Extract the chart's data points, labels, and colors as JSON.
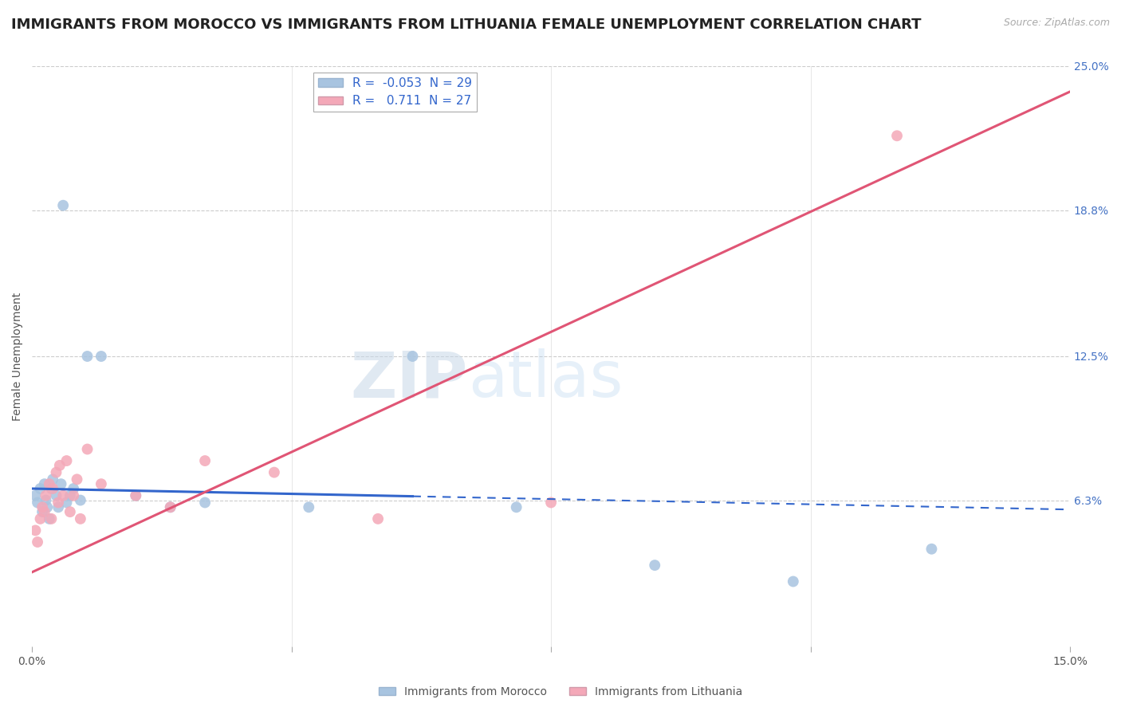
{
  "title": "IMMIGRANTS FROM MOROCCO VS IMMIGRANTS FROM LITHUANIA FEMALE UNEMPLOYMENT CORRELATION CHART",
  "source": "Source: ZipAtlas.com",
  "ylabel": "Female Unemployment",
  "watermark": "ZIPatlas",
  "xlim": [
    0.0,
    15.0
  ],
  "ylim": [
    0.0,
    25.0
  ],
  "xtick_positions": [
    0.0,
    3.75,
    7.5,
    11.25,
    15.0
  ],
  "xtick_labels": [
    "0.0%",
    "",
    "",
    "",
    "15.0%"
  ],
  "ytick_labels_right": [
    "6.3%",
    "12.5%",
    "18.8%",
    "25.0%"
  ],
  "ytick_vals_right": [
    6.3,
    12.5,
    18.8,
    25.0
  ],
  "grid_color": "#cccccc",
  "background_color": "#ffffff",
  "morocco_color": "#a8c4e0",
  "lithuania_color": "#f4a8b8",
  "morocco_R": -0.053,
  "morocco_N": 29,
  "lithuania_R": 0.711,
  "lithuania_N": 27,
  "morocco_label": "Immigrants from Morocco",
  "lithuania_label": "Immigrants from Lithuania",
  "morocco_line_b": 6.8,
  "morocco_line_m": -0.06,
  "morocco_solid_end": 5.5,
  "lithuania_line_b": 3.2,
  "lithuania_line_m": 1.38,
  "morocco_scatter_x": [
    0.05,
    0.08,
    0.12,
    0.15,
    0.18,
    0.2,
    0.22,
    0.25,
    0.28,
    0.3,
    0.35,
    0.38,
    0.42,
    0.45,
    0.5,
    0.55,
    0.6,
    0.7,
    0.8,
    1.0,
    1.5,
    2.0,
    2.5,
    4.0,
    5.5,
    7.0,
    9.0,
    11.0,
    13.0
  ],
  "morocco_scatter_y": [
    6.5,
    6.2,
    6.8,
    5.8,
    7.0,
    6.3,
    6.0,
    5.5,
    6.8,
    7.2,
    6.5,
    6.0,
    7.0,
    19.0,
    6.2,
    6.5,
    6.8,
    6.3,
    12.5,
    12.5,
    6.5,
    6.0,
    6.2,
    6.0,
    12.5,
    6.0,
    3.5,
    2.8,
    4.2
  ],
  "lithuania_scatter_x": [
    0.05,
    0.08,
    0.12,
    0.15,
    0.18,
    0.2,
    0.25,
    0.28,
    0.3,
    0.35,
    0.38,
    0.4,
    0.45,
    0.5,
    0.55,
    0.6,
    0.65,
    0.7,
    0.8,
    1.0,
    1.5,
    2.0,
    2.5,
    3.5,
    5.0,
    7.5,
    12.5
  ],
  "lithuania_scatter_y": [
    5.0,
    4.5,
    5.5,
    6.0,
    5.8,
    6.5,
    7.0,
    5.5,
    6.8,
    7.5,
    6.2,
    7.8,
    6.5,
    8.0,
    5.8,
    6.5,
    7.2,
    5.5,
    8.5,
    7.0,
    6.5,
    6.0,
    8.0,
    7.5,
    5.5,
    6.2,
    22.0
  ],
  "title_fontsize": 13,
  "axis_label_fontsize": 10,
  "tick_fontsize": 10,
  "legend_fontsize": 11,
  "marker_size": 100
}
